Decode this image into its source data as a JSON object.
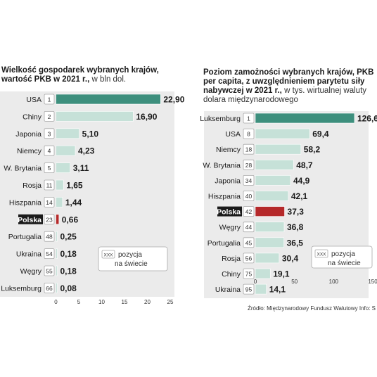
{
  "chart_data": [
    {
      "type": "bar",
      "orientation": "horizontal",
      "title": "Wielkość gospodarek wybranych krajów, wartość PKB w 2021 r.,",
      "title_unit": "w bln dol.",
      "categories": [
        "USA",
        "Chiny",
        "Japonia",
        "Niemcy",
        "W. Brytania",
        "Rosja",
        "Hiszpania",
        "Polska",
        "Portugalia",
        "Ukraina",
        "Węgry",
        "Luksemburg"
      ],
      "values": [
        22.9,
        16.9,
        5.1,
        4.23,
        3.11,
        1.65,
        1.44,
        0.66,
        0.25,
        0.18,
        0.18,
        0.08
      ],
      "value_labels": [
        "22,90",
        "16,90",
        "5,10",
        "4,23",
        "3,11",
        "1,65",
        "1,44",
        "0,66",
        "0,25",
        "0,18",
        "0,18",
        "0,08"
      ],
      "ranks": [
        "1",
        "2",
        "3",
        "4",
        "5",
        "11",
        "14",
        "23",
        "48",
        "54",
        "55",
        "66"
      ],
      "xlim": [
        0,
        25
      ],
      "xticks": [
        "0",
        "5",
        "10",
        "15",
        "20",
        "25"
      ],
      "highlight": [
        "USA",
        "Polska"
      ],
      "legend": {
        "box": "XXX",
        "text_line1": "pozycja",
        "text_line2": "na świecie"
      }
    },
    {
      "type": "bar",
      "orientation": "horizontal",
      "title": "Poziom zamożności wybranych krajów, PKB per capita, z uwzględnieniem parytetu siły nabywczej w 2021 r.,",
      "title_unit": "w tys. wirtualnej waluty dolara międzynarodowego",
      "categories": [
        "Luksemburg",
        "USA",
        "Niemcy",
        "W. Brytania",
        "Japonia",
        "Hiszpania",
        "Polska",
        "Węgry",
        "Portugalia",
        "Rosja",
        "Chiny",
        "Ukraina"
      ],
      "values": [
        126.6,
        69.4,
        58.2,
        48.7,
        44.9,
        42.1,
        37.3,
        36.8,
        36.5,
        30.4,
        19.1,
        14.1
      ],
      "value_labels": [
        "126,6",
        "69,4",
        "58,2",
        "48,7",
        "44,9",
        "42,1",
        "37,3",
        "36,8",
        "36,5",
        "30,4",
        "19,1",
        "14,1"
      ],
      "ranks": [
        "1",
        "8",
        "18",
        "28",
        "34",
        "40",
        "42",
        "44",
        "45",
        "56",
        "75",
        "95"
      ],
      "xlim": [
        0,
        150
      ],
      "xticks": [
        "0",
        "50",
        "100",
        "150"
      ],
      "highlight": [
        "Luksemburg",
        "Polska"
      ],
      "legend": {
        "box": "XXX",
        "text_line1": "pozycja",
        "text_line2": "na świecie"
      }
    }
  ],
  "text": {
    "left_title_bold": "Wielkość gospodarek wybranych krajów, wartość PKB w 2021 r.,",
    "left_title_light": " w bln dol.",
    "right_title_bold": "Poziom zamożności wybranych krajów, PKB per capita, z uwzględnieniem parytetu siły nabywczej w 2021 r.,",
    "right_title_light": " w tys. wirtualnej waluty dolara międzynarodowego",
    "source": "Źródło: Międzynarodowy Fundusz Walutowy  Info: S"
  },
  "colors": {
    "teal": "#3d8f7d",
    "light_teal": "#c6e1d8",
    "red": "#b5292a",
    "panel": "#ebebeb",
    "polska_label_bg": "#1a1a1a"
  }
}
